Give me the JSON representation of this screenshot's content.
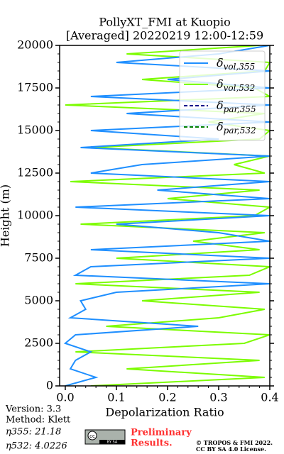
{
  "chart_data": {
    "type": "line",
    "orientation": "vertical-profile",
    "title": "PollyXT_FMI at Kuopio",
    "subtitle": "[Averaged] 20220219 12:00-12:59",
    "xlabel": "Depolarization Ratio",
    "ylabel": "Height (m)",
    "xlim": [
      -0.011,
      0.4
    ],
    "xticks": [
      {
        "value": 0,
        "label": "0.0"
      },
      0.1,
      0.2,
      0.3,
      0.4
    ],
    "ylim": [
      0,
      20000
    ],
    "yticks": [
      0,
      2500,
      5000,
      7500,
      10000,
      12500,
      15000,
      17500,
      20000
    ],
    "legend": "upper right",
    "y": [
      0,
      500,
      1000,
      1500,
      2000,
      2500,
      3000,
      3500,
      4000,
      4500,
      5000,
      5500,
      6000,
      6500,
      7000,
      7500,
      8000,
      8500,
      9000,
      9500,
      10000,
      10500,
      11000,
      11500,
      12000,
      12500,
      13000,
      13500,
      14000,
      14500,
      15000,
      15500,
      16000,
      16500,
      17000,
      17500,
      18000,
      18500,
      19000,
      19500,
      20000
    ],
    "series": [
      {
        "name": "δvol,355",
        "color": "#1f8fff",
        "dash": false,
        "values": [
          0.0,
          0.06,
          0.01,
          0.02,
          0.05,
          0.0,
          0.02,
          0.26,
          0.01,
          0.04,
          0.03,
          0.1,
          0.4,
          0.02,
          0.05,
          0.4,
          0.05,
          0.4,
          0.3,
          0.1,
          0.4,
          0.02,
          0.4,
          0.18,
          0.4,
          0.05,
          0.15,
          0.4,
          0.03,
          0.3,
          0.05,
          0.4,
          0.12,
          0.4,
          0.05,
          0.4,
          0.2,
          0.4,
          0.1,
          0.3,
          0.4
        ]
      },
      {
        "name": "δvol,532",
        "color": "#7cfc00",
        "dash": false,
        "values": [
          0.05,
          0.39,
          0.12,
          0.38,
          0.02,
          0.35,
          0.4,
          0.08,
          0.3,
          0.39,
          0.15,
          0.38,
          0.02,
          0.36,
          0.4,
          0.1,
          0.38,
          0.25,
          0.39,
          0.03,
          0.37,
          0.4,
          0.2,
          0.38,
          0.01,
          0.39,
          0.33,
          0.4,
          0.05,
          0.38,
          0.4,
          0.28,
          0.39,
          0.0,
          0.4,
          0.37,
          0.15,
          0.39,
          0.4,
          0.12,
          0.38
        ]
      },
      {
        "name": "δpar,355",
        "color": "#00008b",
        "dash": true,
        "values": [
          null,
          null,
          null,
          null,
          null,
          null,
          null,
          null,
          null,
          null,
          null,
          null,
          null,
          null,
          null,
          null,
          null,
          null,
          null,
          null,
          null,
          null,
          null,
          null,
          null,
          null,
          null,
          null,
          null,
          null,
          null,
          null,
          null,
          null,
          null,
          null,
          null,
          null,
          null,
          null,
          null
        ]
      },
      {
        "name": "δpar,532",
        "color": "#008000",
        "dash": true,
        "values": [
          null,
          null,
          null,
          null,
          null,
          null,
          null,
          null,
          null,
          null,
          null,
          null,
          null,
          null,
          null,
          null,
          null,
          null,
          null,
          null,
          null,
          null,
          null,
          null,
          null,
          null,
          null,
          null,
          null,
          null,
          null,
          null,
          null,
          null,
          null,
          null,
          null,
          null,
          null,
          null,
          null
        ]
      }
    ]
  },
  "footer": {
    "version": "Version: 3.3",
    "method": "Method: Klett",
    "eta355": "η355:  21.18",
    "eta532": "η532: 4.0226",
    "badge": "cc",
    "badge_by": "BY SA",
    "preliminary_1": "Preliminary",
    "preliminary_2": "Results.",
    "copyright": "© TROPOS & FMI 2022.",
    "license": "CC BY SA 4.0 License."
  }
}
